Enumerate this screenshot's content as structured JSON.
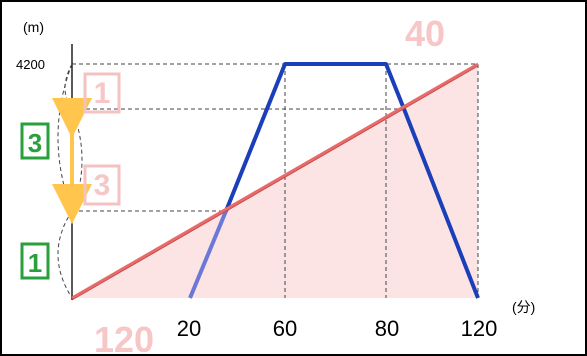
{
  "axes": {
    "y_unit": "(m)",
    "y_value": "4200",
    "x_unit": "(分)",
    "x_ticks": [
      "20",
      "60",
      "80",
      "120"
    ]
  },
  "labels": {
    "speed_40": "40",
    "speed_120": "120",
    "ratio_upper_1": "1",
    "ratio_middle_3": "3",
    "ratio_left_3": "3",
    "ratio_left_1": "1"
  },
  "colors": {
    "trapezoid": "#1a3fb8",
    "trapezoid_faded": "#6b78d8",
    "diagonal": "#e86b6b",
    "shaded_region": "#fde4e4",
    "pink_text": "#f7c6c6",
    "green_box": "#29a03c",
    "arrow": "#ffc54d"
  }
}
